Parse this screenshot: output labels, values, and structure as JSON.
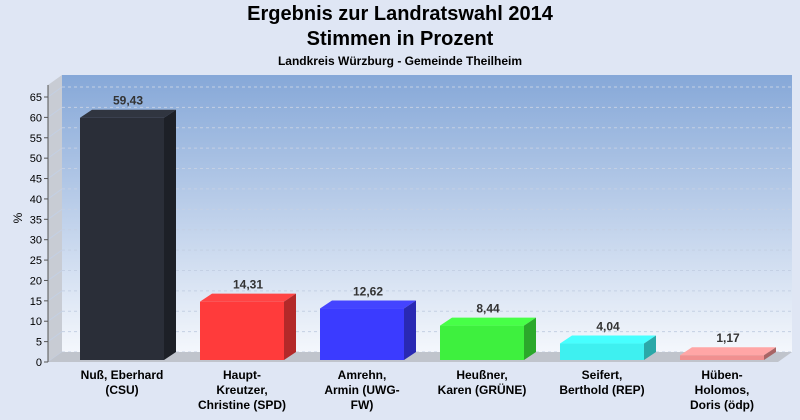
{
  "chart_data": {
    "type": "bar",
    "title": "Ergebnis zur Landratswahl 2014",
    "title_line2": "Stimmen in Prozent",
    "subtitle": "Landkreis Würzburg - Gemeinde Theilheim",
    "ylabel": "%",
    "ylim": [
      0,
      65
    ],
    "yticks": [
      0,
      5,
      10,
      15,
      20,
      25,
      30,
      35,
      40,
      45,
      50,
      55,
      60,
      65
    ],
    "grid": true,
    "categories": [
      [
        "Nuß, Eberhard",
        "(CSU)"
      ],
      [
        "Haupt-",
        "Kreutzer,",
        "Christine (SPD)"
      ],
      [
        "Amrehn,",
        "Armin (UWG-",
        "FW)"
      ],
      [
        "Heußner,",
        "Karen (GRÜNE)"
      ],
      [
        "Seifert,",
        "Berthold (REP)"
      ],
      [
        "Hüben-",
        "Holomos,",
        "Doris (ödp)"
      ]
    ],
    "values": [
      59.43,
      14.31,
      12.62,
      8.44,
      4.04,
      1.17
    ],
    "value_labels": [
      "59,43",
      "14,31",
      "12,62",
      "8,44",
      "4,04",
      "1,17"
    ],
    "colors": [
      "#2a2e38",
      "#ff3b3b",
      "#3b3bff",
      "#3ef03e",
      "#3ef0f0",
      "#f09090"
    ]
  }
}
